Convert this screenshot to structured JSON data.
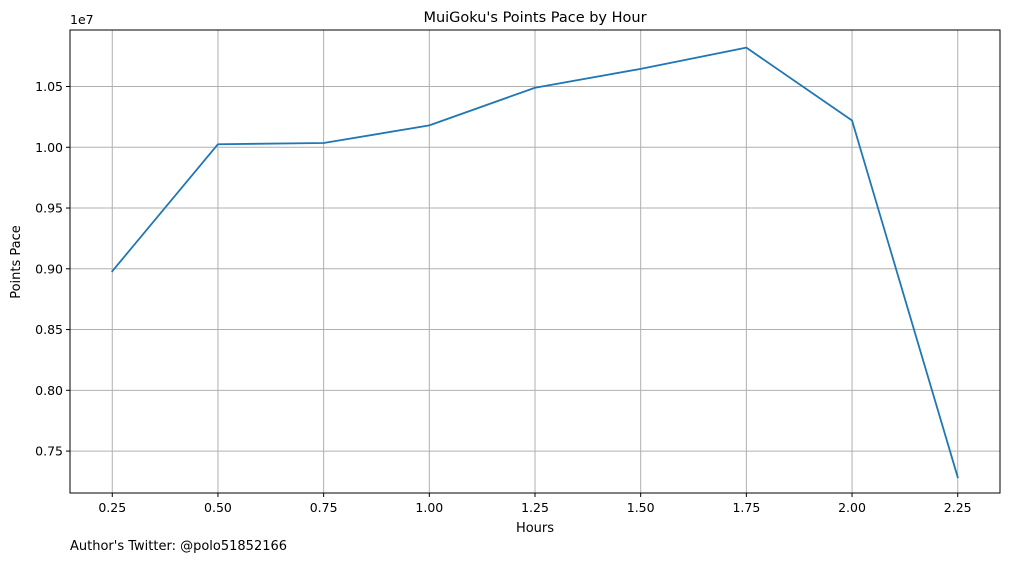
{
  "chart_data": {
    "type": "line",
    "title": "MuiGoku's Points Pace by Hour",
    "xlabel": "Hours",
    "ylabel": "Points Pace",
    "y_offset_label": "1e7",
    "x_ticks": [
      0.25,
      0.5,
      0.75,
      1.0,
      1.25,
      1.5,
      1.75,
      2.0,
      2.25
    ],
    "x_tick_labels": [
      "0.25",
      "0.50",
      "0.75",
      "1.00",
      "1.25",
      "1.50",
      "1.75",
      "2.00",
      "2.25"
    ],
    "y_ticks": [
      0.75,
      0.8,
      0.85,
      0.9,
      0.95,
      1.0,
      1.05
    ],
    "y_tick_labels": [
      "0.75",
      "0.80",
      "0.85",
      "0.90",
      "0.95",
      "1.00",
      "1.05"
    ],
    "xlim": [
      0.15,
      2.35
    ],
    "ylim": [
      0.7155,
      1.0965
    ],
    "grid": true,
    "series": [
      {
        "name": "Points Pace",
        "color": "#1f77b4",
        "x": [
          0.25,
          0.5,
          0.75,
          1.0,
          1.25,
          1.5,
          1.75,
          2.0,
          2.25
        ],
        "values": [
          0.898,
          1.0025,
          1.0035,
          1.018,
          1.049,
          1.0645,
          1.082,
          1.022,
          0.7285
        ]
      }
    ]
  },
  "footer": {
    "author_text": "Author's Twitter: @polo51852166"
  },
  "colors": {
    "grid": "#b0b0b0",
    "axes": "#000000",
    "background": "#ffffff"
  }
}
